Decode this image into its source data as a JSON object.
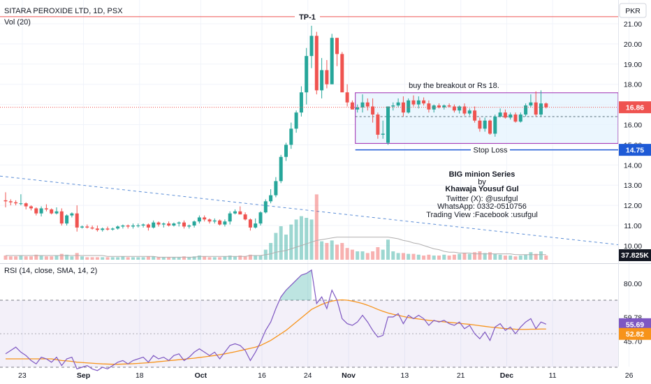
{
  "header": {
    "symbol_line": "SITARA PEROXIDE LTD, 1D, PSX",
    "volume_label": "Vol (20)",
    "currency": "PKR",
    "rsi_label": "RSI (14, close, SMA, 14, 2)"
  },
  "colors": {
    "up": "#26a69a",
    "down": "#ef5350",
    "rsi_line": "#7e57c2",
    "rsi_ma": "#f7931a",
    "box_border": "#9c27b0",
    "box_fill": "#e3f2fd",
    "stop_loss": "#1e5ad6",
    "price_line": "#ef5350",
    "trend_line": "#5b8dd6"
  },
  "annotations": {
    "tp_label": "TP-1",
    "tp_price": 21.35,
    "breakout_text": "buy the breakout  or Rs 18.",
    "stop_loss_text": "Stop Loss",
    "stop_loss_price": 14.75,
    "box_top": 17.58,
    "box_bottom": 15.07,
    "box_mid": 16.4,
    "series_title": "BIG minion Series",
    "by": "by",
    "author": "Khawaja Yousuf Gul",
    "twitter": "Twitter (X): @usufgul",
    "whatsapp": "WhatsApp: 0332-0510756",
    "tradingview": "Trading View :Facebook :usufgul"
  },
  "price_tags": {
    "last_price": "16.86",
    "stop_loss": "14.75",
    "volume": "37.825K",
    "rsi_value": "55.69",
    "rsi_ma_value": "52.82"
  },
  "chart_data": {
    "type": "candlestick",
    "price_axis": {
      "ticks": [
        "21.00",
        "20.00",
        "19.00",
        "18.00",
        "17.00",
        "16.00",
        "15.00",
        "14.00",
        "13.00",
        "12.00",
        "11.00",
        "10.00"
      ],
      "ylim": [
        9.8,
        21.5
      ]
    },
    "rsi_axis": {
      "ticks": [
        "80.00",
        "59.78",
        "45.70"
      ],
      "bands": [
        30,
        70
      ],
      "mid": 50,
      "ylim": [
        24,
        89
      ]
    },
    "x_axis": {
      "labels": [
        "23",
        "Sep",
        "18",
        "Oct",
        "16",
        "24",
        "Nov",
        "13",
        "21",
        "Dec",
        "11",
        "26"
      ]
    },
    "candles": [
      [
        12.25,
        12.65,
        11.9,
        12.2
      ],
      [
        12.2,
        12.3,
        12.0,
        12.15
      ],
      [
        12.15,
        12.25,
        12.0,
        12.1
      ],
      [
        12.1,
        12.55,
        12.0,
        12.1
      ],
      [
        12.1,
        12.15,
        11.8,
        11.95
      ],
      [
        11.95,
        12.0,
        11.75,
        11.85
      ],
      [
        11.85,
        11.9,
        11.5,
        11.6
      ],
      [
        11.6,
        11.95,
        11.45,
        11.85
      ],
      [
        11.85,
        12.05,
        11.7,
        11.8
      ],
      [
        11.8,
        11.85,
        11.55,
        11.6
      ],
      [
        11.6,
        11.9,
        11.55,
        11.7
      ],
      [
        11.7,
        11.85,
        11.0,
        11.1
      ],
      [
        11.1,
        11.55,
        11.0,
        11.5
      ],
      [
        11.5,
        11.65,
        11.4,
        11.6
      ],
      [
        11.6,
        12.0,
        10.7,
        10.9
      ],
      [
        10.9,
        11.0,
        10.85,
        10.95
      ],
      [
        10.95,
        11.05,
        10.85,
        10.9
      ],
      [
        10.9,
        11.0,
        10.8,
        10.85
      ],
      [
        10.85,
        11.0,
        10.7,
        10.78
      ],
      [
        10.78,
        10.9,
        10.7,
        10.85
      ],
      [
        10.85,
        10.95,
        10.75,
        10.8
      ],
      [
        10.8,
        10.9,
        10.75,
        10.85
      ],
      [
        10.85,
        11.0,
        10.8,
        10.95
      ],
      [
        10.95,
        11.05,
        10.85,
        11.0
      ],
      [
        11.0,
        11.05,
        10.85,
        10.95
      ],
      [
        10.95,
        11.1,
        10.85,
        11.0
      ],
      [
        11.0,
        11.1,
        10.9,
        11.0
      ],
      [
        11.0,
        11.1,
        10.9,
        11.05
      ],
      [
        11.05,
        11.1,
        10.75,
        10.9
      ],
      [
        10.9,
        11.25,
        10.85,
        11.15
      ],
      [
        11.15,
        11.2,
        10.95,
        11.05
      ],
      [
        11.05,
        11.15,
        10.9,
        11.1
      ],
      [
        11.1,
        11.2,
        10.95,
        11.0
      ],
      [
        11.0,
        11.15,
        10.95,
        11.1
      ],
      [
        11.1,
        11.2,
        10.95,
        11.15
      ],
      [
        11.15,
        11.25,
        10.85,
        10.95
      ],
      [
        10.95,
        11.05,
        10.85,
        11.0
      ],
      [
        11.0,
        11.25,
        10.9,
        11.2
      ],
      [
        11.2,
        11.5,
        11.1,
        11.4
      ],
      [
        11.4,
        11.5,
        11.2,
        11.3
      ],
      [
        11.3,
        11.35,
        11.1,
        11.2
      ],
      [
        11.2,
        11.35,
        11.1,
        11.25
      ],
      [
        11.25,
        11.3,
        11.0,
        11.05
      ],
      [
        11.05,
        11.3,
        10.95,
        11.2
      ],
      [
        11.2,
        11.7,
        11.05,
        11.6
      ],
      [
        11.6,
        11.8,
        11.55,
        11.7
      ],
      [
        11.7,
        11.95,
        11.55,
        11.55
      ],
      [
        11.55,
        11.65,
        11.25,
        11.3
      ],
      [
        11.3,
        11.35,
        10.75,
        10.9
      ],
      [
        10.9,
        11.35,
        10.85,
        11.1
      ],
      [
        11.1,
        11.7,
        11.0,
        11.65
      ],
      [
        11.65,
        12.3,
        11.6,
        12.2
      ],
      [
        12.2,
        12.8,
        12.1,
        12.5
      ],
      [
        12.5,
        13.4,
        12.4,
        13.2
      ],
      [
        13.2,
        14.5,
        13.1,
        14.4
      ],
      [
        14.4,
        15.1,
        14.2,
        15.0
      ],
      [
        15.0,
        16.1,
        14.8,
        15.8
      ],
      [
        15.8,
        16.7,
        15.6,
        16.6
      ],
      [
        16.6,
        17.9,
        16.4,
        17.6
      ],
      [
        17.6,
        19.8,
        17.0,
        19.4
      ],
      [
        19.4,
        20.9,
        18.8,
        20.4
      ],
      [
        20.4,
        20.6,
        17.5,
        17.7
      ],
      [
        17.7,
        19.3,
        17.3,
        18.7
      ],
      [
        18.7,
        19.2,
        17.8,
        18.0
      ],
      [
        18.0,
        20.5,
        18.0,
        20.3
      ],
      [
        20.3,
        20.3,
        18.9,
        19.5
      ],
      [
        19.5,
        19.6,
        17.7,
        17.6
      ],
      [
        17.6,
        18.0,
        16.9,
        17.1
      ],
      [
        17.1,
        17.2,
        16.8,
        16.75
      ],
      [
        16.75,
        17.0,
        16.6,
        16.85
      ],
      [
        16.85,
        17.5,
        16.6,
        17.1
      ],
      [
        17.1,
        17.3,
        16.7,
        16.9
      ],
      [
        16.9,
        17.3,
        16.1,
        16.5
      ],
      [
        16.5,
        16.6,
        15.3,
        15.5
      ],
      [
        15.5,
        16.2,
        15.3,
        15.55
      ],
      [
        15.1,
        16.9,
        15.0,
        16.9
      ],
      [
        16.9,
        17.1,
        16.7,
        16.95
      ],
      [
        16.95,
        17.3,
        16.85,
        17.1
      ],
      [
        17.1,
        17.4,
        16.4,
        16.6
      ],
      [
        16.6,
        17.3,
        16.55,
        17.2
      ],
      [
        17.2,
        17.45,
        16.9,
        17.0
      ],
      [
        17.0,
        17.4,
        16.8,
        17.2
      ],
      [
        17.2,
        17.35,
        16.95,
        17.05
      ],
      [
        17.05,
        17.2,
        16.6,
        16.75
      ],
      [
        16.75,
        17.0,
        16.6,
        16.95
      ],
      [
        16.95,
        17.05,
        16.8,
        16.85
      ],
      [
        16.85,
        17.0,
        16.75,
        16.95
      ],
      [
        16.95,
        17.05,
        16.85,
        16.9
      ],
      [
        16.9,
        17.0,
        16.6,
        16.7
      ],
      [
        16.7,
        16.95,
        16.55,
        16.9
      ],
      [
        16.9,
        17.05,
        16.45,
        16.55
      ],
      [
        16.55,
        16.8,
        16.45,
        16.7
      ],
      [
        16.7,
        16.9,
        16.1,
        16.2
      ],
      [
        16.2,
        16.35,
        15.65,
        15.8
      ],
      [
        15.8,
        16.35,
        15.65,
        16.2
      ],
      [
        16.2,
        16.25,
        15.5,
        15.55
      ],
      [
        15.55,
        16.5,
        15.4,
        16.4
      ],
      [
        16.4,
        16.8,
        16.35,
        16.6
      ],
      [
        16.6,
        16.75,
        16.3,
        16.35
      ],
      [
        16.35,
        16.6,
        16.25,
        16.5
      ],
      [
        16.5,
        16.6,
        16.1,
        16.15
      ],
      [
        16.15,
        16.6,
        16.1,
        16.5
      ],
      [
        16.5,
        17.05,
        16.4,
        16.95
      ],
      [
        16.95,
        17.5,
        16.85,
        17.1
      ],
      [
        17.1,
        17.65,
        16.4,
        16.5
      ],
      [
        16.5,
        17.7,
        16.4,
        17.05
      ],
      [
        17.05,
        17.1,
        16.8,
        16.86
      ]
    ],
    "volume": [
      0.05,
      0.04,
      0.04,
      0.05,
      0.04,
      0.04,
      0.06,
      0.05,
      0.04,
      0.04,
      0.05,
      0.07,
      0.06,
      0.04,
      0.08,
      0.04,
      0.03,
      0.03,
      0.03,
      0.03,
      0.03,
      0.03,
      0.03,
      0.04,
      0.03,
      0.03,
      0.03,
      0.03,
      0.04,
      0.04,
      0.03,
      0.03,
      0.03,
      0.03,
      0.03,
      0.04,
      0.03,
      0.04,
      0.05,
      0.04,
      0.03,
      0.03,
      0.03,
      0.04,
      0.05,
      0.04,
      0.05,
      0.04,
      0.06,
      0.05,
      0.05,
      0.12,
      0.2,
      0.32,
      0.4,
      0.3,
      0.42,
      0.48,
      0.52,
      0.5,
      0.48,
      0.78,
      0.22,
      0.2,
      0.23,
      0.18,
      0.2,
      0.14,
      0.12,
      0.1,
      0.1,
      0.08,
      0.1,
      0.15,
      0.12,
      0.24,
      0.1,
      0.08,
      0.08,
      0.07,
      0.07,
      0.06,
      0.05,
      0.06,
      0.05,
      0.05,
      0.06,
      0.05,
      0.06,
      0.07,
      0.08,
      0.07,
      0.09,
      0.1,
      0.08,
      0.09,
      0.07,
      0.06,
      0.05,
      0.05,
      0.04,
      0.05,
      0.06,
      0.09,
      0.07,
      0.1,
      0.05
    ],
    "volume_ma": [
      0.05,
      0.05,
      0.05,
      0.05,
      0.05,
      0.05,
      0.05,
      0.05,
      0.05,
      0.05,
      0.05,
      0.05,
      0.05,
      0.05,
      0.05,
      0.05,
      0.05,
      0.05,
      0.05,
      0.05,
      0.04,
      0.04,
      0.04,
      0.04,
      0.04,
      0.04,
      0.04,
      0.04,
      0.04,
      0.04,
      0.03,
      0.03,
      0.03,
      0.03,
      0.03,
      0.03,
      0.03,
      0.03,
      0.04,
      0.04,
      0.04,
      0.04,
      0.04,
      0.04,
      0.04,
      0.04,
      0.04,
      0.04,
      0.05,
      0.05,
      0.05,
      0.06,
      0.07,
      0.09,
      0.1,
      0.11,
      0.13,
      0.15,
      0.17,
      0.19,
      0.21,
      0.23,
      0.24,
      0.25,
      0.26,
      0.27,
      0.27,
      0.27,
      0.27,
      0.27,
      0.27,
      0.27,
      0.27,
      0.27,
      0.27,
      0.27,
      0.26,
      0.25,
      0.23,
      0.22,
      0.2,
      0.19,
      0.17,
      0.15,
      0.13,
      0.12,
      0.1,
      0.09,
      0.09,
      0.08,
      0.08,
      0.08,
      0.07,
      0.07,
      0.07,
      0.07,
      0.07,
      0.07,
      0.07,
      0.07,
      0.06,
      0.06,
      0.06,
      0.06,
      0.06,
      0.06,
      0.06
    ],
    "rsi": [
      38,
      40,
      42,
      39,
      37,
      34,
      32,
      36,
      35,
      33,
      36,
      31,
      35,
      36,
      29,
      30,
      31,
      29,
      28,
      30,
      29,
      31,
      33,
      34,
      32,
      34,
      35,
      36,
      33,
      37,
      35,
      36,
      34,
      37,
      38,
      34,
      36,
      39,
      41,
      39,
      37,
      39,
      35,
      39,
      43,
      44,
      43,
      40,
      34,
      39,
      45,
      52,
      57,
      65,
      72,
      76,
      79,
      82,
      85,
      86,
      88,
      68,
      72,
      65,
      76,
      70,
      59,
      56,
      55,
      57,
      61,
      57,
      52,
      48,
      49,
      60,
      60,
      62,
      56,
      61,
      59,
      61,
      59,
      55,
      58,
      57,
      58,
      56,
      55,
      57,
      53,
      55,
      50,
      47,
      51,
      46,
      54,
      56,
      52,
      54,
      50,
      54,
      57,
      59,
      53,
      57,
      55.69
    ],
    "rsi_ma": [
      35,
      35,
      35,
      35,
      35,
      35,
      35,
      35,
      35,
      35,
      34.5,
      34,
      33.8,
      33.5,
      33,
      32.8,
      32.6,
      32.4,
      32.2,
      32,
      31.9,
      31.8,
      31.8,
      31.9,
      32,
      32.1,
      32.3,
      32.5,
      32.7,
      33,
      33.3,
      33.6,
      33.9,
      34.2,
      34.5,
      34.8,
      35.1,
      35.4,
      35.8,
      36.2,
      36.6,
      37,
      37.5,
      38,
      38.6,
      39.2,
      39.9,
      40.6,
      41.3,
      42,
      43,
      44.5,
      46,
      48,
      50,
      52,
      54.5,
      57,
      59.5,
      62,
      64.5,
      66,
      67.5,
      68.6,
      69.5,
      70,
      70.2,
      70,
      69.5,
      68.8,
      68,
      67,
      65.8,
      64.5,
      63.4,
      62.4,
      61.6,
      61,
      60.3,
      59.7,
      59.2,
      58.8,
      58.4,
      58,
      57.7,
      57.4,
      57.1,
      56.8,
      56.5,
      56.2,
      55.9,
      55.6,
      55.2,
      54.8,
      54.4,
      54,
      53.7,
      53.4,
      53.1,
      52.9,
      52.7,
      52.6,
      52.6,
      52.7,
      52.7,
      52.8,
      52.82
    ]
  }
}
